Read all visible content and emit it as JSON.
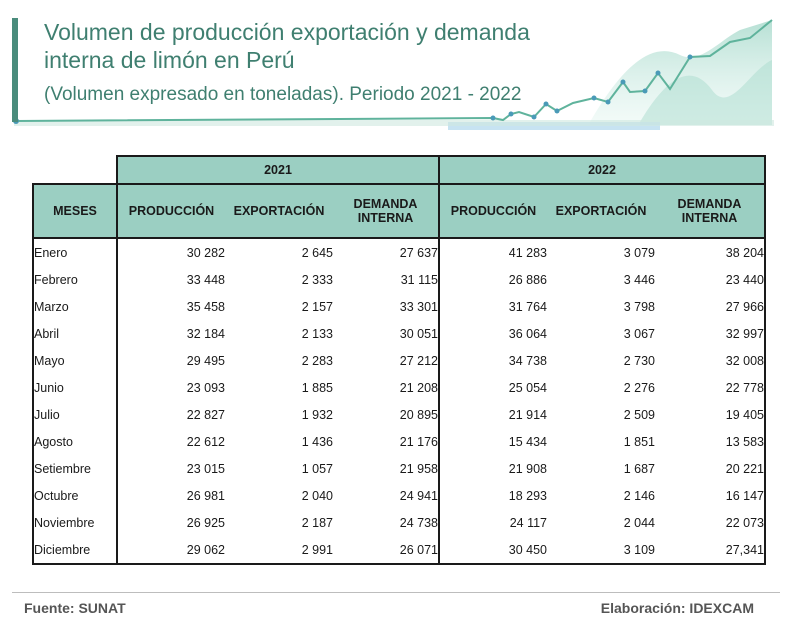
{
  "header": {
    "title": "Volumen de producción exportación y demanda interna de limón en Perú",
    "subtitle": "(Volumen expresado en toneladas). Periodo 2021 - 2022"
  },
  "table": {
    "year_2021": "2021",
    "year_2022": "2022",
    "col_meses": "MESES",
    "col_produccion": "PRODUCCIÓN",
    "col_exportacion": "EXPORTACIÓN",
    "col_demanda": "DEMANDA INTERNA",
    "rows": [
      {
        "mes": "Enero",
        "p21": "30 282",
        "e21": "2 645",
        "d21": "27 637",
        "p22": "41 283",
        "e22": "3 079",
        "d22": "38 204"
      },
      {
        "mes": "Febrero",
        "p21": "33 448",
        "e21": "2 333",
        "d21": "31 115",
        "p22": "26 886",
        "e22": "3 446",
        "d22": "23 440"
      },
      {
        "mes": "Marzo",
        "p21": "35 458",
        "e21": "2 157",
        "d21": "33 301",
        "p22": "31 764",
        "e22": "3 798",
        "d22": "27 966"
      },
      {
        "mes": "Abril",
        "p21": "32 184",
        "e21": "2 133",
        "d21": "30 051",
        "p22": "36 064",
        "e22": "3 067",
        "d22": "32 997"
      },
      {
        "mes": "Mayo",
        "p21": "29 495",
        "e21": "2 283",
        "d21": "27 212",
        "p22": "34 738",
        "e22": "2 730",
        "d22": "32 008"
      },
      {
        "mes": "Junio",
        "p21": "23 093",
        "e21": "1 885",
        "d21": "21 208",
        "p22": "25 054",
        "e22": "2 276",
        "d22": "22 778"
      },
      {
        "mes": "Julio",
        "p21": "22 827",
        "e21": "1 932",
        "d21": "20 895",
        "p22": "21 914",
        "e22": "2 509",
        "d22": "19 405"
      },
      {
        "mes": "Agosto",
        "p21": "22 612",
        "e21": "1 436",
        "d21": "21 176",
        "p22": "15 434",
        "e22": "1 851",
        "d22": "13 583"
      },
      {
        "mes": "Setiembre",
        "p21": "23 015",
        "e21": "1 057",
        "d21": "21 958",
        "p22": "21 908",
        "e22": "1 687",
        "d22": "20 221"
      },
      {
        "mes": "Octubre",
        "p21": "26 981",
        "e21": "2 040",
        "d21": "24 941",
        "p22": "18 293",
        "e22": "2 146",
        "d22": "16 147"
      },
      {
        "mes": "Noviembre",
        "p21": "26 925",
        "e21": "2 187",
        "d21": "24 738",
        "p22": "24 117",
        "e22": "2 044",
        "d22": "22 073"
      },
      {
        "mes": "Diciembre",
        "p21": "29 062",
        "e21": "2 991",
        "d21": "26 071",
        "p22": "30 450",
        "e22": "3 109",
        "d22": "27,341"
      }
    ]
  },
  "footer": {
    "fuente": "Fuente: SUNAT",
    "elaboracion": "Elaboración: IDEXCAM"
  },
  "colors": {
    "accent": "#4a8c7c",
    "header_fill": "#9bcfc2",
    "deco_line": "#5fb39c"
  }
}
